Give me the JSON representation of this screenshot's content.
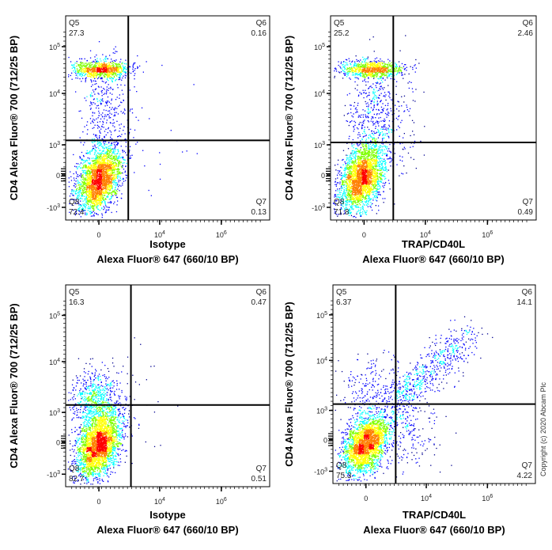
{
  "chart_data": [
    {
      "type": "scatter",
      "subtype": "flow-cytometry-pseudocolor-density",
      "xlabel_line1": "Isotype",
      "xlabel_line2": "Alexa Fluor® 647  (660/10 BP)",
      "ylabel": "CD4 Alexa Fluor® 700  (712/25 BP)",
      "x_ticks": [
        "0",
        "10^4",
        "10^6"
      ],
      "y_ticks": [
        "-10^3",
        "0",
        "10^3",
        "10^4",
        "10^5"
      ],
      "x_scale": "biexponential",
      "y_scale": "biexponential",
      "quadrants": {
        "Q5": "27.3",
        "Q6": "0.16",
        "Q7": "0.13",
        "Q8": "72.4"
      }
    },
    {
      "type": "scatter",
      "subtype": "flow-cytometry-pseudocolor-density",
      "xlabel_line1": "TRAP/CD40L",
      "xlabel_line2": "Alexa Fluor® 647  (660/10 BP)",
      "ylabel": "CD4 Alexa Fluor® 700  (712/25 BP)",
      "x_ticks": [
        "0",
        "10^4",
        "10^6"
      ],
      "y_ticks": [
        "-10^3",
        "0",
        "10^3",
        "10^4",
        "10^5"
      ],
      "x_scale": "biexponential",
      "y_scale": "biexponential",
      "quadrants": {
        "Q5": "25.2",
        "Q6": "2.46",
        "Q7": "0.49",
        "Q8": "71.8"
      }
    },
    {
      "type": "scatter",
      "subtype": "flow-cytometry-pseudocolor-density",
      "xlabel_line1": "Isotype",
      "xlabel_line2": "Alexa Fluor® 647  (660/10 BP)",
      "ylabel": "CD4 Alexa Fluor® 700  (712/25 BP)",
      "x_ticks": [
        "0",
        "10^4",
        "10^6"
      ],
      "y_ticks": [
        "-10^3",
        "0",
        "10^3",
        "10^4",
        "10^5"
      ],
      "x_scale": "biexponential",
      "y_scale": "biexponential",
      "quadrants": {
        "Q5": "16.3",
        "Q6": "0.47",
        "Q7": "0.51",
        "Q8": "82.7"
      }
    },
    {
      "type": "scatter",
      "subtype": "flow-cytometry-pseudocolor-density",
      "xlabel_line1": "TRAP/CD40L",
      "xlabel_line2": "Alexa Fluor® 647  (660/10 BP)",
      "ylabel": "CD4 Alexa Fluor® 700  (712/25 BP)",
      "x_ticks": [
        "0",
        "10^4",
        "10^6"
      ],
      "y_ticks": [
        "-10^3",
        "0",
        "10^3",
        "10^4",
        "10^5"
      ],
      "x_scale": "biexponential",
      "y_scale": "biexponential",
      "quadrants": {
        "Q5": "6.37",
        "Q6": "14.1",
        "Q7": "4.22",
        "Q8": "75.3"
      }
    }
  ],
  "colormap": [
    "#00008f",
    "#0000ff",
    "#00ffff",
    "#7fff00",
    "#ffff00",
    "#ff7f00",
    "#ff0000"
  ],
  "copyright": "Copyright (c) 2020 Abcam Plc"
}
